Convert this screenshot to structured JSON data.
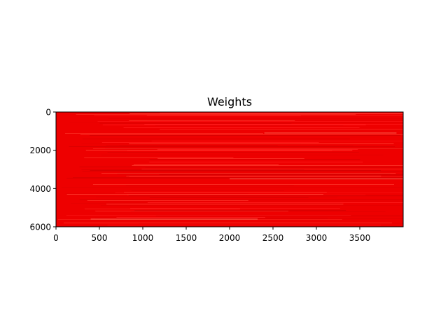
{
  "chart_data": {
    "type": "heatmap",
    "title": "Weights",
    "xlabel": "",
    "ylabel": "",
    "xlim": [
      0,
      4000
    ],
    "ylim": [
      6000,
      0
    ],
    "x_ticks": [
      0,
      500,
      1000,
      1500,
      2000,
      2500,
      3000,
      3500
    ],
    "y_ticks": [
      0,
      2000,
      4000,
      6000
    ],
    "x_tick_labels": [
      "0",
      "500",
      "1000",
      "1500",
      "2000",
      "2500",
      "3000",
      "3500"
    ],
    "y_tick_labels": [
      "0",
      "2000",
      "4000",
      "6000"
    ],
    "base_color": "#ee0000",
    "stripe_colors": [
      "#d60000",
      "#e20000",
      "#ff1a1a",
      "#ff3b2e"
    ],
    "highlight_color": "#ff8c70",
    "grid": false,
    "legend": "none"
  }
}
